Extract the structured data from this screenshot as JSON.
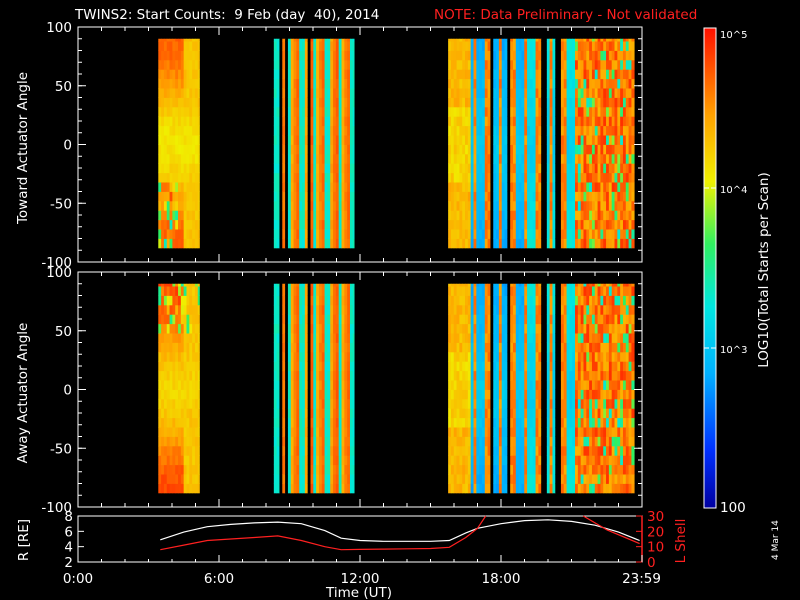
{
  "title": {
    "main": "TWINS2: Start Counts:  9 Feb (day  40), 2014",
    "note": "NOTE: Data Preliminary - Not validated"
  },
  "datestamp": "4 Mar 14",
  "colors": {
    "background": "#000000",
    "axes": "#ffffff",
    "note": "#ff2020",
    "lshell": "#ff2020",
    "radius": "#ffffff"
  },
  "chart_data": [
    {
      "type": "heatmap",
      "panel": "toward",
      "ylabel": "Toward Actuator Angle",
      "ylim": [
        -100,
        100
      ],
      "yticks": [
        -100,
        -50,
        0,
        50,
        100
      ],
      "xlim_hours": [
        0,
        24
      ],
      "data_intervals_ut": [
        [
          "03:25",
          "05:10"
        ],
        [
          "08:20",
          "11:45"
        ],
        [
          "15:45",
          "23:40"
        ]
      ],
      "angle_range": [
        -88,
        90
      ],
      "colorscale": "rainbow",
      "value_units": "log10 total starts per scan"
    },
    {
      "type": "heatmap",
      "panel": "away",
      "ylabel": "Away Actuator Angle",
      "ylim": [
        -100,
        100
      ],
      "yticks": [
        -100,
        -50,
        0,
        50,
        100
      ],
      "xlim_hours": [
        0,
        24
      ],
      "data_intervals_ut": [
        [
          "03:25",
          "05:10"
        ],
        [
          "08:20",
          "11:45"
        ],
        [
          "15:45",
          "23:40"
        ]
      ],
      "angle_range": [
        -88,
        90
      ],
      "colorscale": "rainbow",
      "value_units": "log10 total starts per scan"
    },
    {
      "type": "line",
      "panel": "orbit",
      "xlabel": "Time (UT)",
      "xticks": [
        "0:00",
        "6:00",
        "12:00",
        "18:00",
        "23:59"
      ],
      "xtick_hours": [
        0,
        6,
        12,
        18,
        23.98
      ],
      "ylabel_left": "R [RE]",
      "ylim_left": [
        2,
        8
      ],
      "yticks_left": [
        "2",
        "4",
        "6",
        "8"
      ],
      "ylabel_right": "L Shell",
      "ylim_right": [
        0,
        30
      ],
      "yticks_right": [
        "0",
        "10",
        "20",
        "30"
      ],
      "series": [
        {
          "name": "R [RE]",
          "axis": "left",
          "x": [
            3.5,
            4.5,
            5.5,
            6.5,
            7.5,
            8.5,
            9.5,
            10.5,
            11.2,
            12,
            13,
            14,
            15,
            15.8,
            16.5,
            17,
            18,
            19,
            20,
            21,
            22,
            23,
            23.9
          ],
          "y": [
            4.9,
            5.9,
            6.6,
            6.9,
            7.1,
            7.2,
            7.0,
            6.1,
            5.1,
            4.8,
            4.7,
            4.7,
            4.7,
            4.8,
            5.8,
            6.4,
            7.0,
            7.4,
            7.5,
            7.3,
            6.8,
            5.9,
            4.8
          ]
        },
        {
          "name": "L Shell",
          "axis": "right",
          "x": [
            3.5,
            4.5,
            5.5,
            6.5,
            7.5,
            8.5,
            9.5,
            10.5,
            11.2,
            12,
            13,
            14,
            15,
            15.8,
            16.5,
            17.0,
            17.35
          ],
          "y": [
            8,
            11,
            14,
            15,
            16,
            17,
            14,
            10,
            8,
            8.2,
            8.4,
            8.6,
            8.8,
            9.6,
            16,
            22,
            30
          ],
          "segment2_x": [
            21.5,
            22.5,
            23.9
          ],
          "segment2_y": [
            30,
            21,
            12
          ]
        }
      ]
    },
    {
      "type": "colorbar",
      "label": "LOG10(Total Starts per Scan)",
      "ticks": [
        "10^5",
        "10^4",
        "10^3",
        "100"
      ],
      "tick_exponents": [
        5,
        4,
        3,
        2
      ],
      "range": [
        2,
        5
      ]
    }
  ]
}
